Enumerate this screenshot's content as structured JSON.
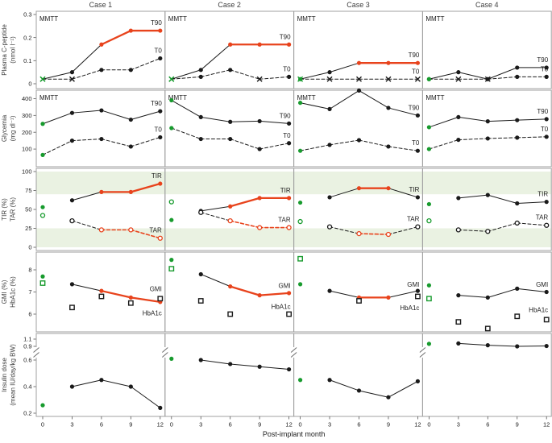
{
  "colors": {
    "highlight_red": "#e8431c",
    "baseline_green": "#189b2e",
    "target_band_green": "#eaf2e2",
    "series_black": "#1a1a1a",
    "frame_gray": "#a0a0a0",
    "text": "#1c1c1c",
    "title_gray": "#3f3f3f"
  },
  "columns": [
    "Case 1",
    "Case 2",
    "Case 3",
    "Case 4"
  ],
  "x_axis": {
    "label": "Post-implant month",
    "ticks": [
      "0",
      "3",
      "6",
      "9",
      "12"
    ]
  },
  "chart_data": {
    "type": "line",
    "months": [
      0,
      3,
      6,
      9,
      12
    ],
    "legend_note": "green marker = pre-implant baseline (month 0); red = post-month-6 highlight period",
    "rows": [
      {
        "id": "cpeptide",
        "ylabel": [
          "Plasma C-peptide",
          "(nmol l⁻¹)"
        ],
        "yticks": [
          0,
          0.1,
          0.2,
          0.3
        ],
        "ylim": [
          -0.021,
          0.314
        ],
        "corner_label": "MMTT",
        "connect_baseline": true,
        "series": [
          {
            "key": "t90",
            "label": "T90",
            "dash": false,
            "marker": "dot"
          },
          {
            "key": "t0",
            "label": "T0",
            "dash": true,
            "marker": "dot"
          }
        ],
        "cases": [
          {
            "t90": {
              "values": [
                0.02,
                0.05,
                0.17,
                0.23,
                0.23
              ],
              "x_at": [
                0
              ],
              "highlight": [
                2,
                4
              ]
            },
            "t0": {
              "values": [
                0.02,
                0.02,
                0.06,
                0.06,
                0.11
              ],
              "x_at": [
                0,
                1
              ]
            }
          },
          {
            "t90": {
              "values": [
                0.02,
                0.06,
                0.17,
                0.17,
                0.17
              ],
              "x_at": [
                0
              ],
              "highlight": [
                2,
                4
              ]
            },
            "t0": {
              "values": [
                0.02,
                0.03,
                0.06,
                0.02,
                0.03
              ],
              "x_at": [
                0,
                3
              ]
            }
          },
          {
            "t90": {
              "values": [
                0.02,
                0.05,
                0.09,
                0.09,
                0.09
              ],
              "highlight": [
                2,
                4
              ]
            },
            "t0": {
              "values": [
                0.02,
                0.02,
                0.02,
                0.02,
                0.02
              ],
              "x_at": [
                0,
                1,
                2,
                3,
                4
              ]
            }
          },
          {
            "t90": {
              "values": [
                0.02,
                0.05,
                0.02,
                0.07,
                0.07
              ]
            },
            "t0": {
              "values": [
                0.02,
                0.02,
                0.02,
                0.03,
                0.03
              ],
              "x_at": [
                1,
                2
              ]
            }
          }
        ]
      },
      {
        "id": "glycemia",
        "ylabel": [
          "Glycemia",
          "(mg dl⁻¹)"
        ],
        "yticks": [
          100,
          200,
          300,
          400
        ],
        "ylim": [
          -5,
          450
        ],
        "corner_label": "MMTT",
        "connect_baseline": true,
        "series": [
          {
            "key": "t90",
            "label": "T90",
            "dash": false,
            "marker": "dot"
          },
          {
            "key": "t0",
            "label": "T0",
            "dash": true,
            "marker": "dot"
          }
        ],
        "cases": [
          {
            "t90": {
              "values": [
                250,
                315,
                330,
                275,
                325
              ]
            },
            "t0": {
              "values": [
                65,
                150,
                160,
                115,
                170
              ]
            }
          },
          {
            "t90": {
              "values": [
                390,
                290,
                262,
                266,
                252
              ]
            },
            "t0": {
              "values": [
                225,
                160,
                160,
                100,
                135
              ]
            }
          },
          {
            "t90": {
              "values": [
                375,
                338,
                448,
                345,
                300
              ]
            },
            "t0": {
              "values": [
                90,
                125,
                153,
                115,
                90
              ]
            }
          },
          {
            "t90": {
              "values": [
                230,
                290,
                265,
                272,
                278
              ]
            },
            "t0": {
              "values": [
                100,
                155,
                163,
                168,
                173
              ]
            }
          }
        ]
      },
      {
        "id": "tir-tar",
        "ylabel": [
          "TIR (%)",
          "TAR (%)"
        ],
        "yticks": [
          0,
          25,
          50,
          75,
          100
        ],
        "ylim": [
          -4.25,
          104.25
        ],
        "bands": [
          [
            70,
            100
          ],
          [
            0,
            25
          ]
        ],
        "connect_baseline": false,
        "series": [
          {
            "key": "tir",
            "label": "TIR",
            "dash": false,
            "marker": "dot"
          },
          {
            "key": "tar",
            "label": "TAR",
            "dash": true,
            "marker": "open"
          }
        ],
        "cases": [
          {
            "tir": {
              "values": [
                53,
                62,
                73,
                73,
                84
              ],
              "highlight": [
                2,
                4
              ]
            },
            "tar": {
              "values": [
                42,
                35,
                23,
                23,
                12
              ],
              "highlight": [
                2,
                4
              ]
            }
          },
          {
            "tir": {
              "values": [
                36,
                48,
                54,
                65,
                65
              ],
              "highlight": [
                2,
                4
              ]
            },
            "tar": {
              "values": [
                60,
                46,
                35,
                26,
                26
              ],
              "highlight": [
                2,
                4
              ]
            }
          },
          {
            "tir": {
              "values": [
                59,
                66,
                78,
                78,
                66
              ],
              "highlight": [
                2,
                3
              ]
            },
            "tar": {
              "values": [
                34,
                27,
                18,
                17,
                27
              ],
              "highlight": [
                2,
                3
              ]
            }
          },
          {
            "tir": {
              "values": [
                57,
                65,
                69,
                58,
                60
              ]
            },
            "tar": {
              "values": [
                35,
                23,
                21,
                32,
                29
              ]
            }
          }
        ]
      },
      {
        "id": "gmi-hba1c",
        "ylabel": [
          "GMI (%)",
          "HbA1c (%)"
        ],
        "yticks": [
          6,
          7,
          8
        ],
        "ylim": [
          5.2,
          8.8
        ],
        "connect_baseline": false,
        "series": [
          {
            "key": "gmi",
            "label": "GMI",
            "dash": false,
            "marker": "dot"
          },
          {
            "key": "hba1c",
            "label": "HbA1c",
            "marker": "square",
            "no_line": true,
            "label_side": "below"
          }
        ],
        "cases": [
          {
            "gmi": {
              "values": [
                7.7,
                7.35,
                7.05,
                6.75,
                6.55
              ],
              "highlight": [
                2,
                4
              ],
              "label_v": 7.15
            },
            "hba1c": {
              "values": [
                7.4,
                6.3,
                6.8,
                6.5,
                6.7
              ],
              "label_v": 6.05
            }
          },
          {
            "gmi": {
              "values": [
                8.45,
                7.8,
                7.25,
                6.85,
                6.95
              ],
              "highlight": [
                2,
                4
              ],
              "label_v": 7.3
            },
            "hba1c": {
              "values": [
                8.05,
                6.6,
                6.0,
                null,
                6.0
              ],
              "label_v": 6.35
            }
          },
          {
            "gmi": {
              "values": [
                7.35,
                7.05,
                6.75,
                6.75,
                7.05
              ],
              "highlight": [
                2,
                3
              ],
              "label_v": 7.35
            },
            "hba1c": {
              "values": [
                8.5,
                null,
                6.6,
                null,
                6.8
              ],
              "label_v": 6.3
            }
          },
          {
            "gmi": {
              "values": [
                7.3,
                6.85,
                6.75,
                7.15,
                7.0
              ],
              "label_v": 7.35
            },
            "hba1c": {
              "values": [
                6.7,
                5.65,
                5.35,
                5.9,
                5.75
              ],
              "label_v": 6.2
            }
          }
        ]
      },
      {
        "id": "insulin",
        "ylabel": [
          "Insulin dose",
          "(mean IU/day/kg BW)"
        ],
        "yticks": [
          0.2,
          0.4,
          0.6,
          0.9,
          1.1
        ],
        "axis_break": true,
        "connect_baseline": false,
        "series": [
          {
            "key": "dose",
            "dash": false,
            "marker": "dot"
          }
        ],
        "cases": [
          {
            "dose": {
              "values": [
                0.26,
                0.4,
                0.45,
                0.4,
                0.24
              ]
            }
          },
          {
            "dose": {
              "values": [
                0.61,
                0.6,
                0.57,
                0.55,
                0.53
              ]
            }
          },
          {
            "dose": {
              "values": [
                0.45,
                0.45,
                0.37,
                0.32,
                0.44
              ]
            }
          },
          {
            "dose": {
              "values": [
                0.97,
                0.98,
                0.93,
                0.9,
                0.91
              ]
            }
          }
        ]
      }
    ]
  }
}
